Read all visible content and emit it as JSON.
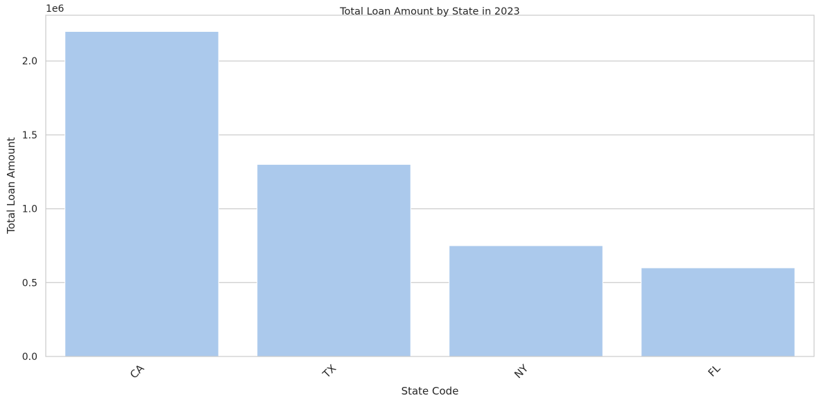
{
  "chart_data": {
    "type": "bar",
    "title": "Total Loan Amount by State in 2023",
    "xlabel": "State Code",
    "ylabel": "Total Loan Amount",
    "categories": [
      "CA",
      "TX",
      "NY",
      "FL"
    ],
    "values": [
      2200000,
      1300000,
      750000,
      600000
    ],
    "ylim": [
      0,
      2310000
    ],
    "yticks": [
      0,
      500000,
      1000000,
      1500000,
      2000000
    ],
    "ytick_labels": [
      "0.0",
      "0.5",
      "1.0",
      "1.5",
      "2.0"
    ],
    "offset_label": "1e6",
    "bar_color": "#abc9ec",
    "grid": "horizontal",
    "xtick_rotation": 45,
    "legend": "none"
  }
}
